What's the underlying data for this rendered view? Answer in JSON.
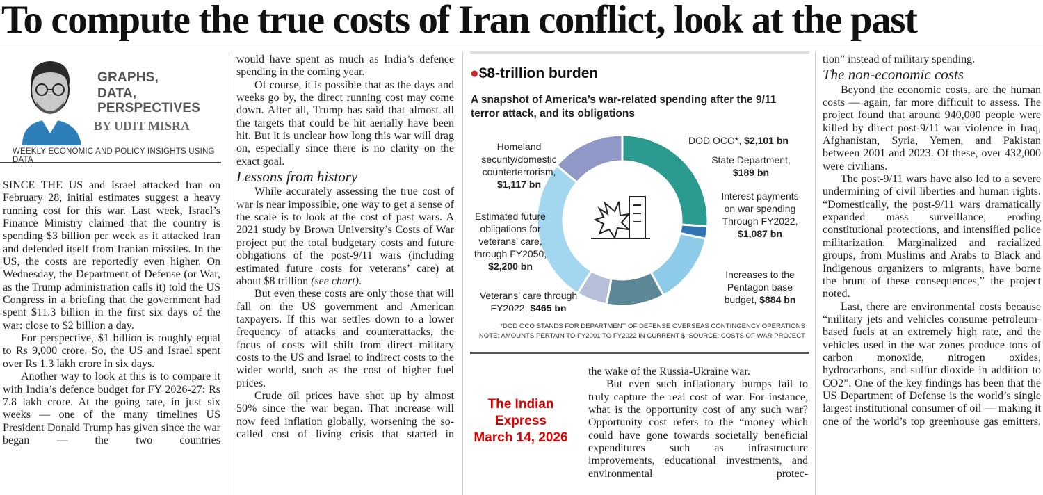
{
  "headline": "To compute the true costs of Iran conflict, look at the past",
  "byline": {
    "label_lines": [
      "GRAPHS,",
      "DATA,",
      "PERSPECTIVES"
    ],
    "author": "BY UDIT MISRA",
    "tagline": "WEEKLY ECONOMIC AND POLICY INSIGHTS USING DATA"
  },
  "col1": {
    "paras": [
      "SINCE THE US and Israel attacked Iran on February 28, initial estimates suggest a heavy running cost for this war. Last week, Israel’s Finance Ministry claimed that the country is spending $3 billion per week as it attacked Iran and defended itself from Iranian missiles. In the US, the costs are reportedly even higher. On Wednesday, the Department of Defense (or War, as the Trump administration calls it) told the US Congress in a briefing that the government had spent $11.3 billion in the first six days of the war: close to $2 billion a day.",
      "For perspective, $1 billion is roughly equal to Rs 9,000 crore. So, the US and Israel spent over Rs 1.3 lakh crore in six days.",
      "Another way to look at this is to compare it with India’s defence budget for FY 2026-27: Rs 7.8 lakh crore. At the going rate, in just six weeks — one of the many timelines US President Donald Trump has given since the war began — the two countries"
    ]
  },
  "col2": {
    "p1": "would have spent as much as India’s defence spending in the coming year.",
    "p2": "Of course, it is possible that as the days and weeks go by, the direct running cost may come down. After all, Trump has said that almost all the targets that could be hit aerially have been hit. But it is unclear how long this war will drag on, especially since there is no clarity on the exact goal.",
    "subhead": "Lessons from history",
    "p3_main": "While accurately assessing the true cost of war is near impossible, one way to get a sense of the scale is to look at the cost of past wars. A 2021 study by Brown University’s Costs of War project put the total budgetary costs and future obligations of the post-9/11 wars (including estimated future costs for veterans’ care) at about $8 trillion ",
    "p3_ref": "(see chart)",
    "p4": "But even these costs are only those that will fall on the US government and American taxpayers. If this war settles down to a lower frequency of attacks and counterattacks, the focus of costs will shift from direct military costs to the US and Israel to indirect costs to the wider world, such as the cost of higher fuel prices.",
    "p5": "Crude oil prices have shot up by almost 50% since the war began. That increase will now feed inflation globally, worsening the so-called cost of living crisis that started in"
  },
  "col3": {
    "p1": "the wake of the Russia-Ukraine war.",
    "p2": "But even such inflationary bumps fail to truly capture the real cost of war. For instance, what is the opportunity cost of any such war? Opportunity cost refers to the “money which could have gone towards societally beneficial expenditures such as infrastructure improvements, educational investments, and environmental protec-"
  },
  "col4": {
    "p1": "tion” instead of military spending.",
    "subhead": "The non-economic costs",
    "p2": "Beyond the economic costs, are the human costs — again, far more difficult to assess. The project found that around 940,000 people were killed by direct post-9/11 war violence in Iraq, Afghanistan, Syria, Yemen, and Pakistan between 2001 and 2023. Of these, over 432,000 were civilians.",
    "p3": "The post-9/11 wars have also led to a severe undermining of civil liberties and human rights. “Domestically, the post-9/11 wars dramatically expanded mass surveillance, eroding constitutional protections, and intensified police militarization. Marginalized and racialized groups, from Muslims and Arabs to Black and Indigenous organizers to migrants, have borne the brunt of these consequences,” the project noted.",
    "p4": "Last, there are environmental costs because “military jets and vehicles consume petroleum-based fuels at an extremely high rate, and the vehicles used in the war zones produce tons of carbon monoxide, nitrogen oxides, hydrocarbons, and sulfur dioxide in addition to CO2”. One of the key findings has been that the US Department of Defense is the world’s single largest institutional consumer of oil — making it one of the world’s top greenhouse gas emitters."
  },
  "watermark": {
    "line1": "The Indian",
    "line2": "Express",
    "line3": "March 14, 2026"
  },
  "chart_data": {
    "type": "pie",
    "variant": "donut",
    "title": "$8-trillion burden",
    "subtitle": "A snapshot of America’s war-related spending after the 9/11 terror attack, and its obligations",
    "unit": "bn",
    "slices": [
      {
        "label": "DOD OCO*,",
        "value_text": "$2,101 bn",
        "value": 2101,
        "color": "#2b9b8f"
      },
      {
        "label": "State Department,",
        "value_text": "$189 bn",
        "value": 189,
        "color": "#2f75b5"
      },
      {
        "label": "Interest payments on war spending Through FY2022,",
        "value_text": "$1,087 bn",
        "value": 1087,
        "color": "#8dcbe8"
      },
      {
        "label": "Increases to the Pentagon base budget,",
        "value_text": "$884 bn",
        "value": 884,
        "color": "#5b8796"
      },
      {
        "label": "Veterans’ care through FY2022,",
        "value_text": "$465 bn",
        "value": 465,
        "color": "#b5c0d8"
      },
      {
        "label": "Estimated future obligations for veterans’ care, through FY2050,",
        "value_text": "$2,200 bn",
        "value": 2200,
        "color": "#a3d6ef"
      },
      {
        "label": "Homeland security/domestic counterterrorism,",
        "value_text": "$1,117 bn",
        "value": 1117,
        "color": "#8f98c7"
      }
    ],
    "notes": [
      "*DOD OCO STANDS FOR DEPARTMENT OF DEFENSE OVERSEAS CONTINGENCY OPERATIONS",
      "NOTE: AMOUNTS PERTAIN TO FY2001 TO FY2022 IN CURRENT $; SOURCE: COSTS OF WAR PROJECT"
    ]
  }
}
